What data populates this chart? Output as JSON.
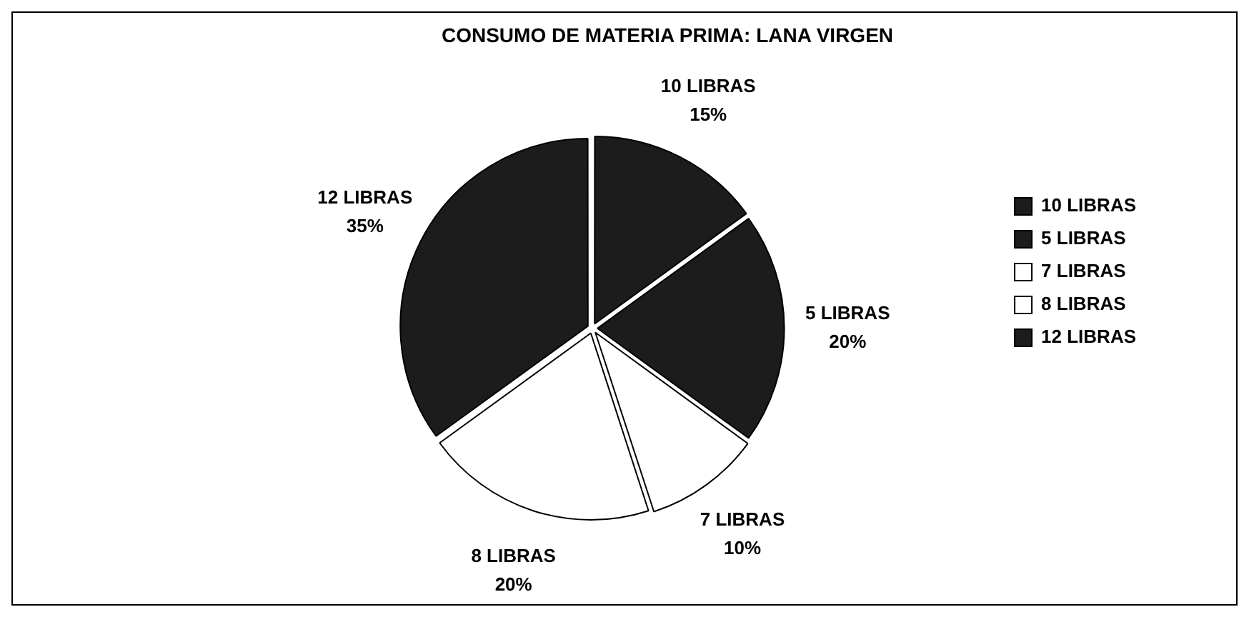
{
  "chart_data": {
    "type": "pie",
    "title": "CONSUMO DE MATERIA PRIMA: LANA VIRGEN",
    "categories": [
      "10 LIBRAS",
      "5 LIBRAS",
      "7 LIBRAS",
      "8 LIBRAS",
      "12 LIBRAS"
    ],
    "values": [
      15,
      20,
      10,
      20,
      35
    ],
    "value_labels": [
      "15%",
      "20%",
      "10%",
      "20%",
      "35%"
    ],
    "colors": [
      "#1c1c1c",
      "#1c1c1c",
      "#ffffff",
      "#ffffff",
      "#1c1c1c"
    ],
    "legend": "right"
  }
}
